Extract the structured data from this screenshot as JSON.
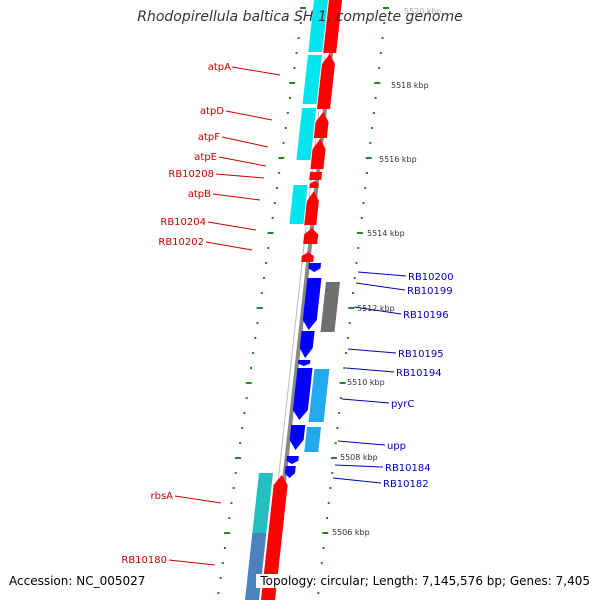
{
  "title": "Rhodopirellula baltica SH 1, complete genome",
  "accession": "Accession: NC_005027",
  "topology": "Topology: circular; Length: 7,145,576 bp; Genes: 7,405",
  "colors": {
    "left_label": "#cc0000",
    "right_label": "#0000bb",
    "red_gene": "#ff0000",
    "cyan_gene": "#00e5ee",
    "blue_gene": "#0000ff",
    "mid_cyan_gene": "#22aaee",
    "gray_gene": "#707070",
    "teal_gene": "#22c0c0",
    "steel_gene": "#4a82c0",
    "backbone": "#888888",
    "tick": "#228822"
  },
  "scale_labels": [
    {
      "text": "5520 kbp"
    },
    {
      "text": "5518 kbp"
    },
    {
      "text": "5516 kbp"
    },
    {
      "text": "5514 kbp"
    },
    {
      "text": "5512 kbp"
    },
    {
      "text": "5510 kbp"
    },
    {
      "text": "5508 kbp"
    },
    {
      "text": "5506 kbp"
    }
  ],
  "left_labels": [
    "atpA",
    "atpD",
    "atpF",
    "atpE",
    "RB10208",
    "atpB",
    "RB10204",
    "RB10202",
    "rbsA",
    "RB10180"
  ],
  "right_labels": [
    "RB10200",
    "RB10199",
    "RB10196",
    "RB10195",
    "RB10194",
    "pyrC",
    "upp",
    "RB10184",
    "RB10182"
  ]
}
